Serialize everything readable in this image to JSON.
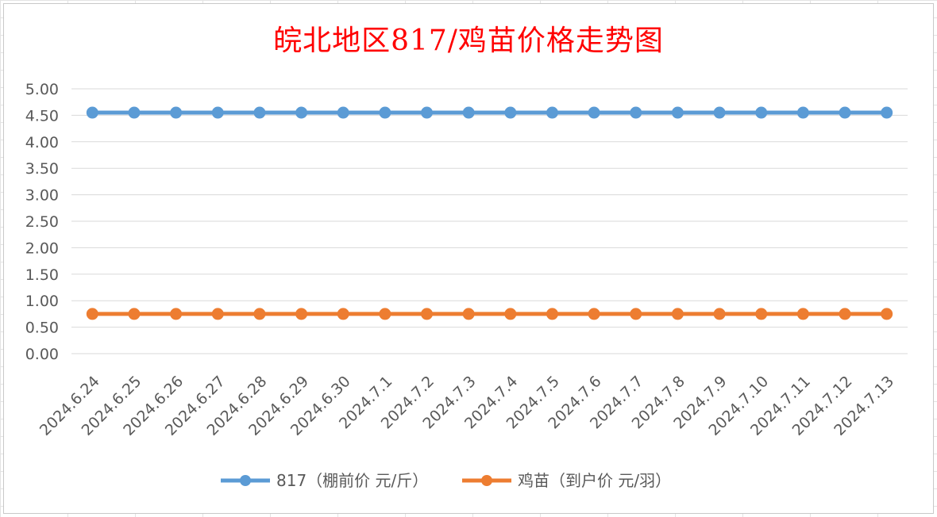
{
  "chart_data": {
    "type": "line",
    "title": "皖北地区817/鸡苗价格走势图",
    "xlabel": "",
    "ylabel": "",
    "ylim": [
      0,
      5
    ],
    "y_ticks": [
      "0.00",
      "0.50",
      "1.00",
      "1.50",
      "2.00",
      "2.50",
      "3.00",
      "3.50",
      "4.00",
      "4.50",
      "5.00"
    ],
    "grid": true,
    "legend_position": "bottom",
    "categories": [
      "2024.6.24",
      "2024.6.25",
      "2024.6.26",
      "2024.6.27",
      "2024.6.28",
      "2024.6.29",
      "2024.6.30",
      "2024.7.1",
      "2024.7.2",
      "2024.7.3",
      "2024.7.4",
      "2024.7.5",
      "2024.7.6",
      "2024.7.7",
      "2024.7.8",
      "2024.7.9",
      "2024.7.10",
      "2024.7.11",
      "2024.7.12",
      "2024.7.13"
    ],
    "series": [
      {
        "name": "817（棚前价 元/斤）",
        "color": "#5b9bd5",
        "values": [
          4.55,
          4.55,
          4.55,
          4.55,
          4.55,
          4.55,
          4.55,
          4.55,
          4.55,
          4.55,
          4.55,
          4.55,
          4.55,
          4.55,
          4.55,
          4.55,
          4.55,
          4.55,
          4.55,
          4.55
        ]
      },
      {
        "name": "鸡苗（到户价 元/羽）",
        "color": "#ed7d31",
        "values": [
          0.75,
          0.75,
          0.75,
          0.75,
          0.75,
          0.75,
          0.75,
          0.75,
          0.75,
          0.75,
          0.75,
          0.75,
          0.75,
          0.75,
          0.75,
          0.75,
          0.75,
          0.75,
          0.75,
          0.75
        ]
      }
    ]
  }
}
